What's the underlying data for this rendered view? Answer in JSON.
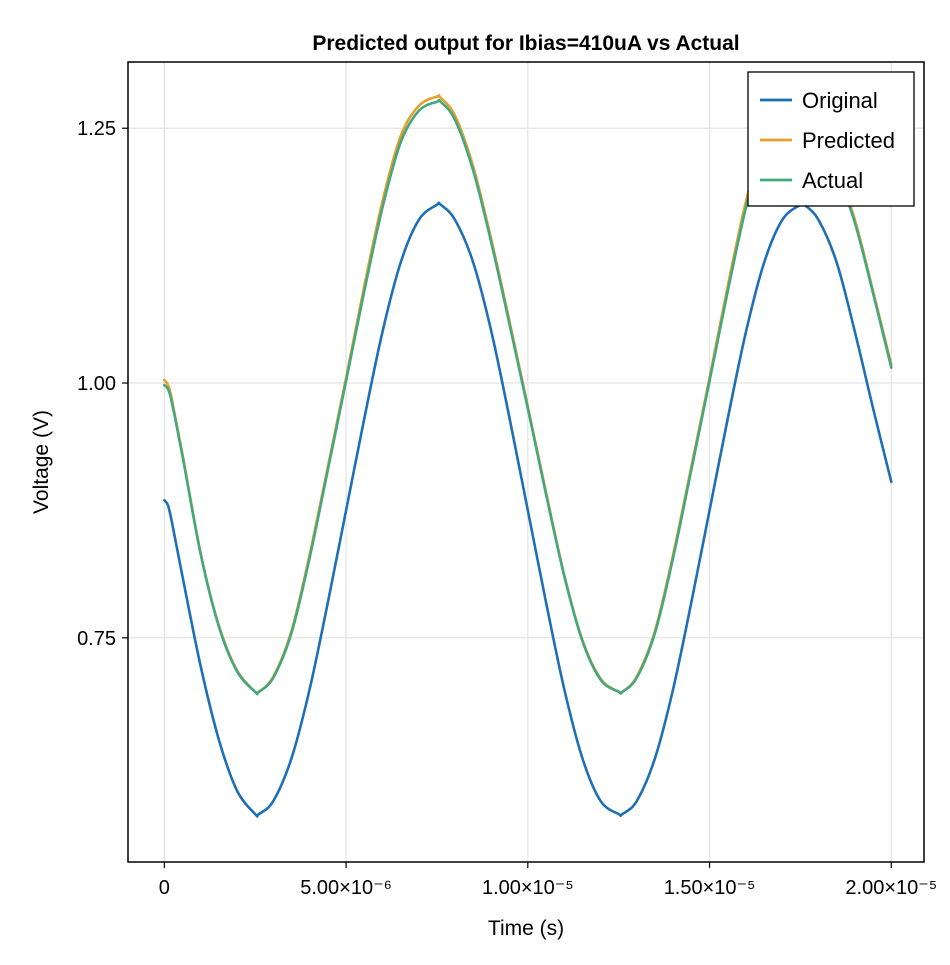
{
  "chart_data": {
    "type": "line",
    "title": "Predicted output for Ibias=410uA vs Actual",
    "xlabel": "Time (s)",
    "ylabel": "Voltage (V)",
    "xlim": [
      -1e-06,
      2.09e-05
    ],
    "ylim": [
      0.53,
      1.315
    ],
    "grid": true,
    "legend_position": "top-right",
    "x_ticks": [
      {
        "value": 0,
        "label": "0"
      },
      {
        "value": 5e-06,
        "label": "5.00×10⁻⁶"
      },
      {
        "value": 1e-05,
        "label": "1.00×10⁻⁵"
      },
      {
        "value": 1.5e-05,
        "label": "1.50×10⁻⁵"
      },
      {
        "value": 2e-05,
        "label": "2.00×10⁻⁵"
      }
    ],
    "y_ticks": [
      {
        "value": 0.75,
        "label": "0.75"
      },
      {
        "value": 1.0,
        "label": "1.00"
      },
      {
        "value": 1.25,
        "label": "1.25"
      }
    ],
    "x": [
      0,
      1e-07,
      2e-07,
      5e-07,
      1e-06,
      1.5e-06,
      2e-06,
      2.5e-06,
      2.6e-06,
      3e-06,
      3.5e-06,
      4e-06,
      4.5e-06,
      5e-06,
      5.5e-06,
      6e-06,
      6.5e-06,
      7e-06,
      7.5e-06,
      7.6e-06,
      8e-06,
      8.5e-06,
      9e-06,
      9.5e-06,
      1e-05,
      1.05e-05,
      1.1e-05,
      1.15e-05,
      1.2e-05,
      1.25e-05,
      1.26e-05,
      1.3e-05,
      1.35e-05,
      1.4e-05,
      1.45e-05,
      1.5e-05,
      1.55e-05,
      1.6e-05,
      1.65e-05,
      1.7e-05,
      1.75e-05,
      1.76e-05,
      1.8e-05,
      1.85e-05,
      1.9e-05,
      1.95e-05,
      2e-05
    ],
    "series": [
      {
        "name": "Original",
        "color": "#1f6fb5",
        "values": [
          0.885,
          0.88,
          0.865,
          0.81,
          0.722,
          0.65,
          0.6,
          0.577,
          0.577,
          0.59,
          0.632,
          0.7,
          0.785,
          0.875,
          0.965,
          1.05,
          1.118,
          1.16,
          1.175,
          1.175,
          1.16,
          1.118,
          1.05,
          0.965,
          0.875,
          0.785,
          0.7,
          0.632,
          0.59,
          0.577,
          0.577,
          0.59,
          0.632,
          0.7,
          0.785,
          0.875,
          0.965,
          1.05,
          1.118,
          1.16,
          1.175,
          1.175,
          1.16,
          1.118,
          1.05,
          0.975,
          0.903
        ]
      },
      {
        "name": "Predicted",
        "color": "#e69f2c",
        "values": [
          1.003,
          0.998,
          0.985,
          0.93,
          0.833,
          0.762,
          0.718,
          0.697,
          0.697,
          0.712,
          0.757,
          0.832,
          0.918,
          1.005,
          1.095,
          1.178,
          1.242,
          1.272,
          1.281,
          1.28,
          1.262,
          1.212,
          1.14,
          1.06,
          0.977,
          0.893,
          0.812,
          0.748,
          0.71,
          0.697,
          0.697,
          0.712,
          0.757,
          0.832,
          0.918,
          1.005,
          1.095,
          1.178,
          1.242,
          1.272,
          1.281,
          1.28,
          1.262,
          1.212,
          1.16,
          1.09,
          1.018
        ]
      },
      {
        "name": "Actual",
        "color": "#44a77d",
        "values": [
          0.998,
          0.994,
          0.982,
          0.928,
          0.832,
          0.761,
          0.717,
          0.697,
          0.697,
          0.711,
          0.755,
          0.829,
          0.915,
          1.002,
          1.09,
          1.172,
          1.236,
          1.267,
          1.276,
          1.276,
          1.258,
          1.208,
          1.137,
          1.057,
          0.975,
          0.891,
          0.811,
          0.747,
          0.709,
          0.697,
          0.697,
          0.711,
          0.755,
          0.829,
          0.915,
          1.002,
          1.09,
          1.172,
          1.236,
          1.267,
          1.276,
          1.276,
          1.258,
          1.208,
          1.157,
          1.088,
          1.015
        ]
      }
    ]
  }
}
